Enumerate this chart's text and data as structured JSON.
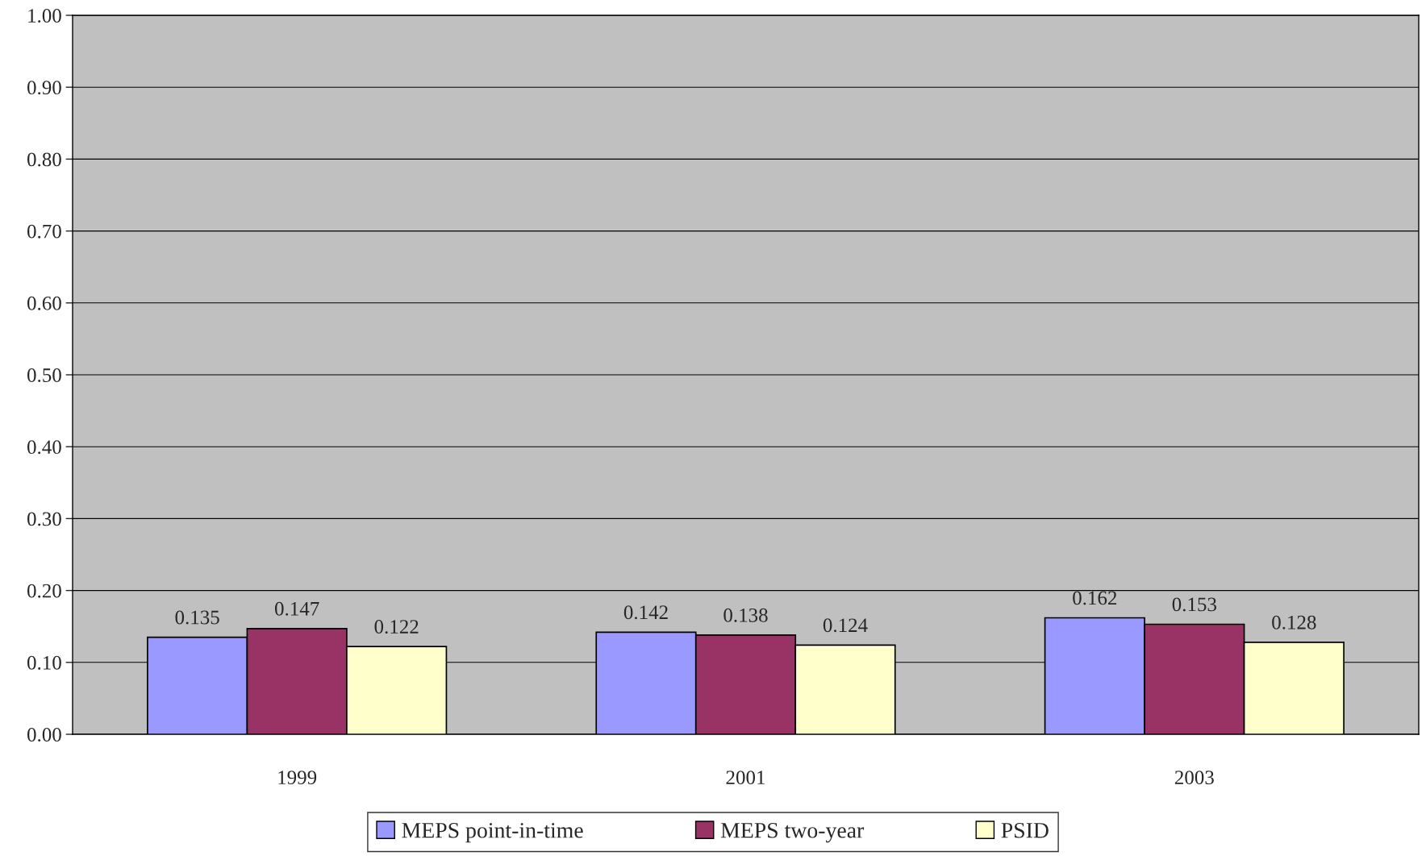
{
  "chart_data": {
    "type": "bar",
    "categories": [
      "1999",
      "2001",
      "2003"
    ],
    "series": [
      {
        "name": "MEPS point-in-time",
        "color": "#9999ff",
        "values": [
          0.135,
          0.142,
          0.162
        ]
      },
      {
        "name": "MEPS two-year",
        "color": "#993366",
        "values": [
          0.147,
          0.138,
          0.153
        ]
      },
      {
        "name": "PSID",
        "color": "#ffffcc",
        "values": [
          0.122,
          0.124,
          0.128
        ]
      }
    ],
    "ylim": [
      0,
      1
    ],
    "yticks": [
      {
        "value": 0,
        "label": "0.00"
      },
      {
        "value": 0.1,
        "label": "0.10"
      },
      {
        "value": 0.2,
        "label": "0.20"
      },
      {
        "value": 0.3,
        "label": "0.30"
      },
      {
        "value": 0.4,
        "label": "0.40"
      },
      {
        "value": 0.5,
        "label": "0.50"
      },
      {
        "value": 0.6,
        "label": "0.60"
      },
      {
        "value": 0.7,
        "label": "0.70"
      },
      {
        "value": 0.8,
        "label": "0.80"
      },
      {
        "value": 0.9,
        "label": "0.90"
      },
      {
        "value": 1,
        "label": "1.00"
      }
    ],
    "grid": "y",
    "legend": "bottom",
    "data_labels": true
  }
}
